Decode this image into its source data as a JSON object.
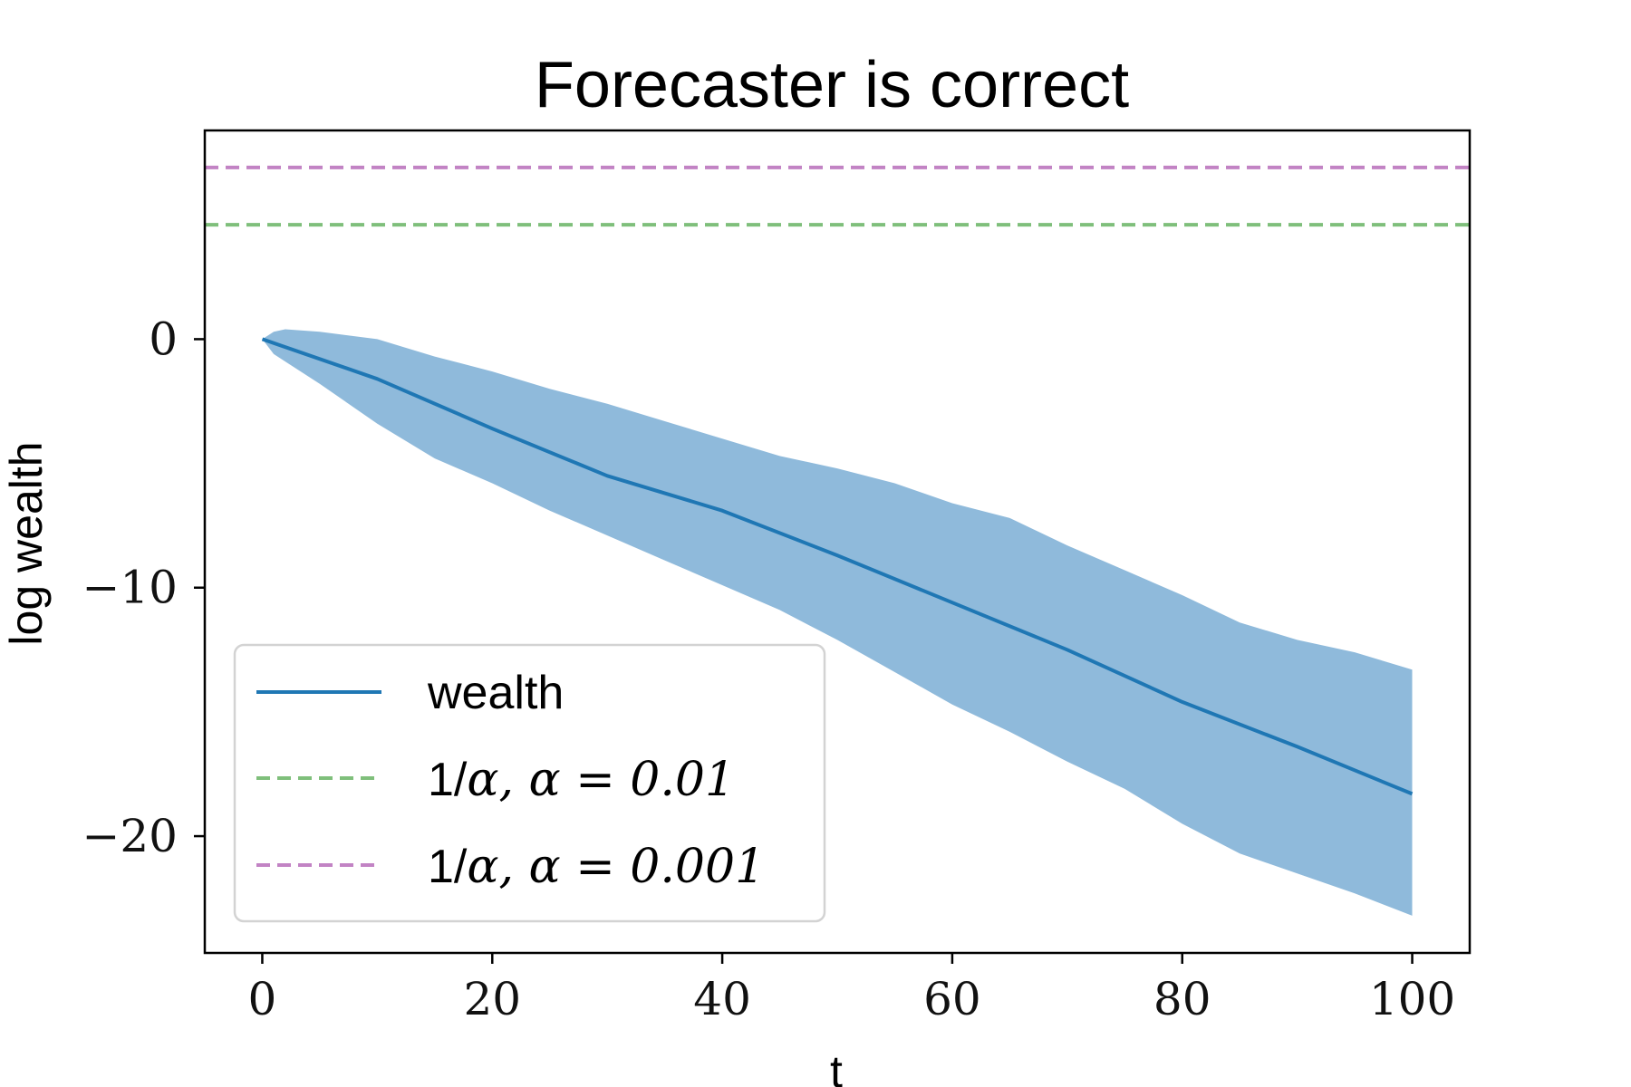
{
  "chart_data": {
    "type": "line",
    "title": "Forecaster is correct",
    "xlabel": "t",
    "ylabel": "log wealth",
    "xlim": [
      -5,
      105
    ],
    "ylim": [
      -24.7,
      8.4
    ],
    "x_ticks": [
      0,
      20,
      40,
      60,
      80,
      100
    ],
    "y_ticks": [
      0,
      -10,
      -20
    ],
    "x_tick_labels": [
      "0",
      "20",
      "40",
      "60",
      "80",
      "100"
    ],
    "y_tick_labels": [
      "0",
      "−10",
      "−20"
    ],
    "grid": false,
    "legend_placement": "lower left",
    "series": [
      {
        "name": "wealth",
        "color": "#1f77b4",
        "style": "solid",
        "x": [
          0,
          10,
          20,
          30,
          40,
          50,
          60,
          70,
          80,
          90,
          100
        ],
        "values": [
          0,
          -1.6,
          -3.6,
          -5.5,
          -6.9,
          -8.7,
          -10.6,
          -12.5,
          -14.6,
          -16.4,
          -18.3
        ]
      },
      {
        "name": "1/α, α = 0.01",
        "color": "#7fbf7b",
        "style": "dashed",
        "x": [
          -5,
          105
        ],
        "values": [
          4.605,
          4.605
        ]
      },
      {
        "name": "1/α, α = 0.001",
        "color": "#c283c4",
        "style": "dashed",
        "x": [
          -5,
          105
        ],
        "values": [
          6.908,
          6.908
        ]
      }
    ],
    "band": {
      "series": "wealth",
      "color": "#8fbadb",
      "x": [
        0,
        1,
        2,
        5,
        10,
        15,
        20,
        25,
        30,
        35,
        40,
        45,
        50,
        55,
        60,
        65,
        70,
        75,
        80,
        85,
        90,
        95,
        100
      ],
      "upper": [
        0,
        0.3,
        0.4,
        0.3,
        0.0,
        -0.7,
        -1.3,
        -2.0,
        -2.6,
        -3.3,
        -4.0,
        -4.7,
        -5.2,
        -5.8,
        -6.6,
        -7.2,
        -8.3,
        -9.3,
        -10.3,
        -11.4,
        -12.1,
        -12.6,
        -13.3
      ],
      "lower": [
        0,
        -0.6,
        -0.9,
        -1.8,
        -3.4,
        -4.8,
        -5.8,
        -6.9,
        -7.9,
        -8.9,
        -9.9,
        -10.9,
        -12.1,
        -13.4,
        -14.7,
        -15.8,
        -17.0,
        -18.1,
        -19.5,
        -20.7,
        -21.5,
        -22.3,
        -23.2
      ]
    },
    "legend": {
      "entries": [
        {
          "label": "wealth",
          "series": "wealth"
        },
        {
          "label_prefix": "1/",
          "label_math": "α, α = 0.01",
          "series": "1/α, α = 0.01"
        },
        {
          "label_prefix": "1/",
          "label_math": "α, α = 0.001",
          "series": "1/α, α = 0.001"
        }
      ]
    }
  }
}
